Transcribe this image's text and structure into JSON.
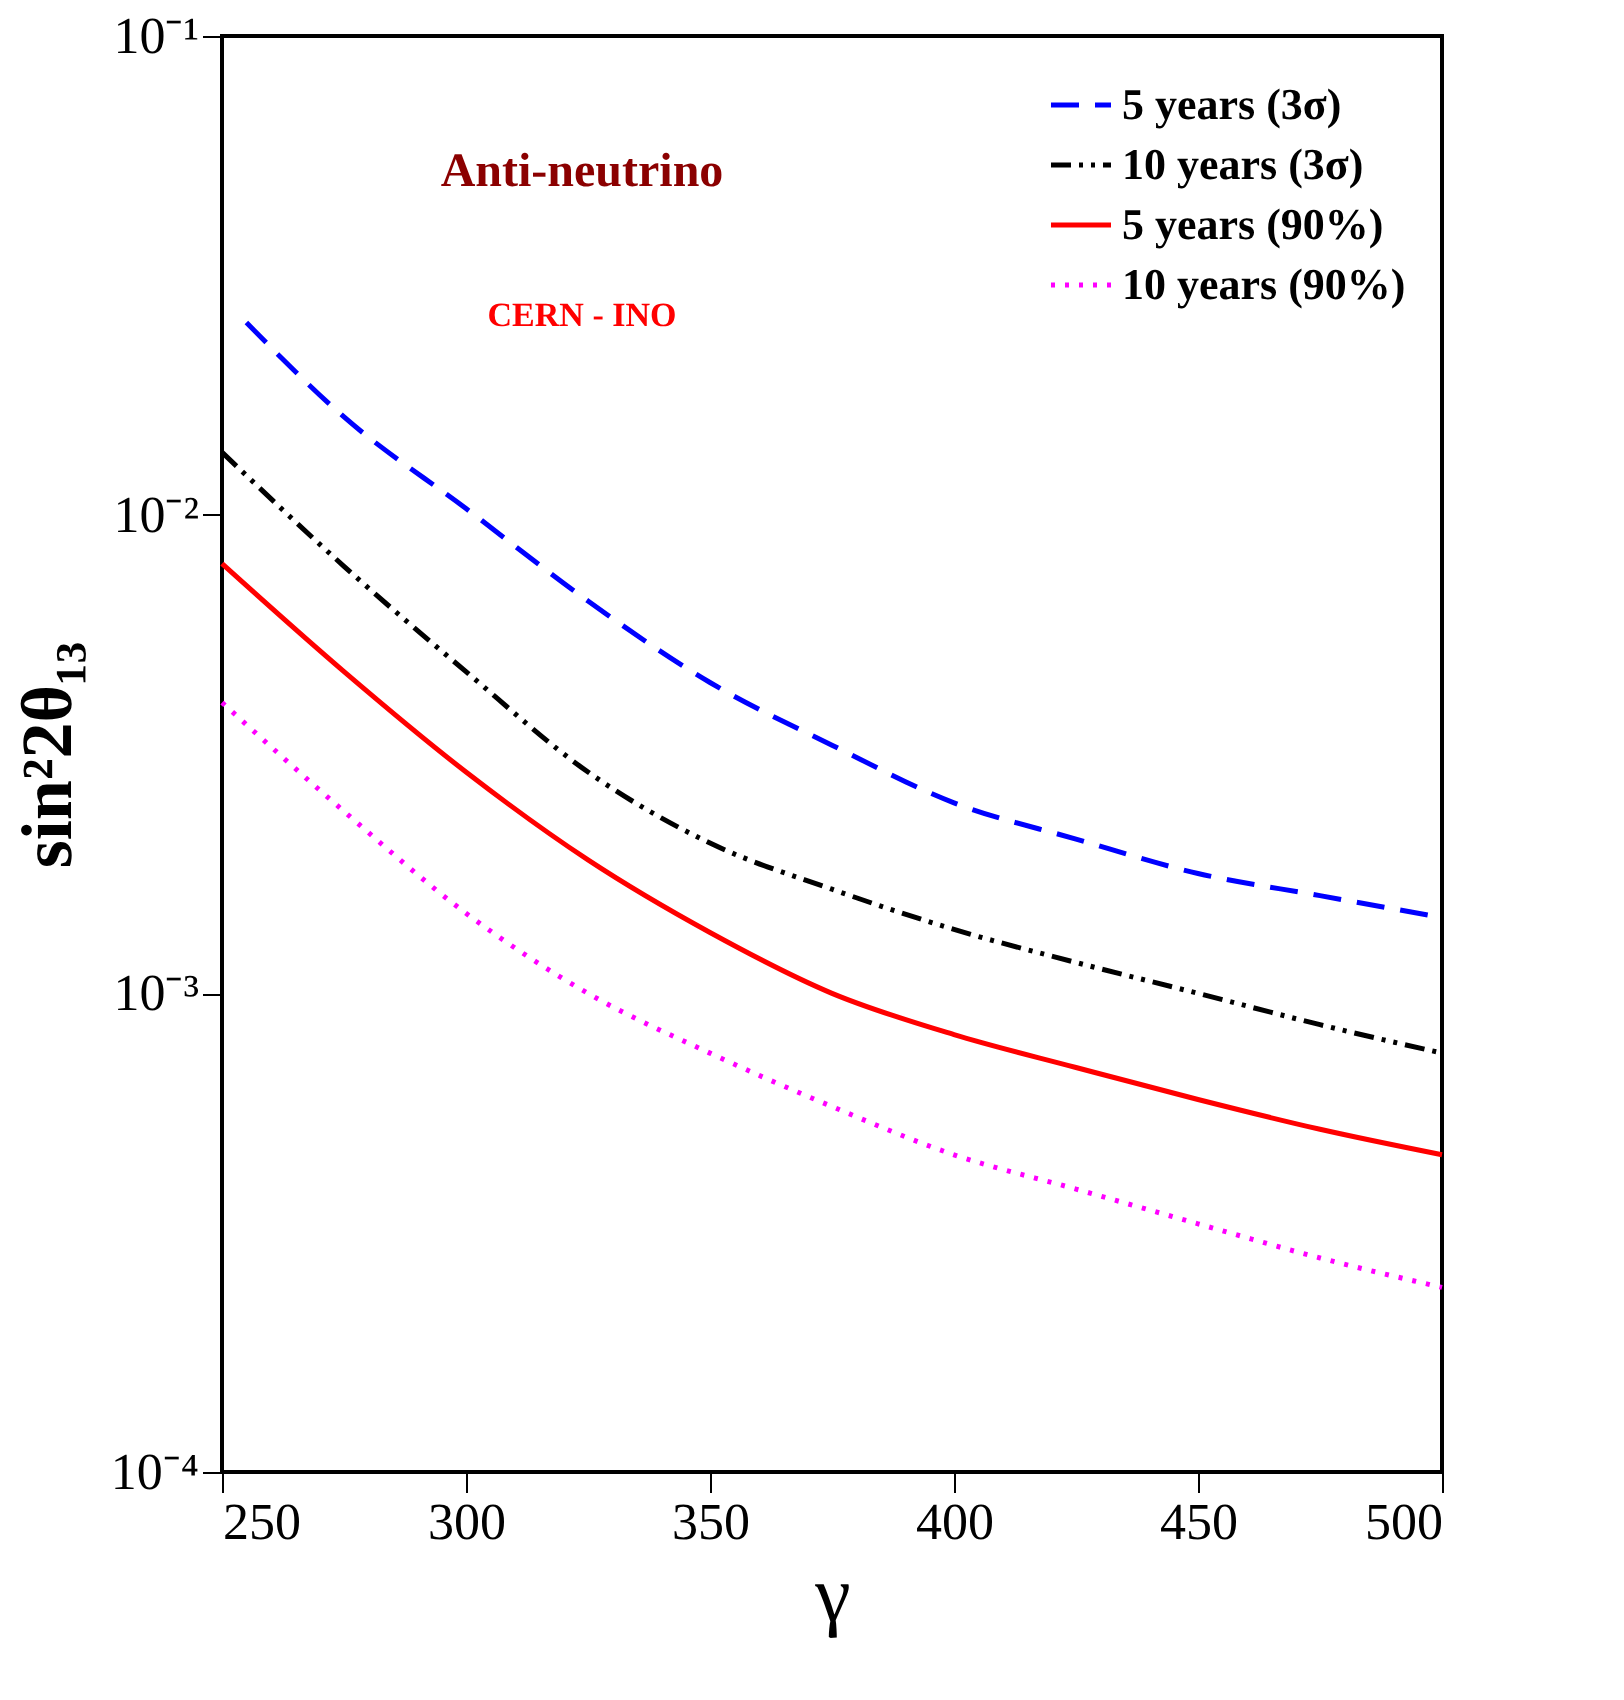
{
  "chart_data": {
    "type": "line",
    "xlabel": "γ",
    "ylabel": "sin²2θ₁₃",
    "annotations": [
      "Anti-neutrino",
      "CERN - INO"
    ],
    "xlim": [
      250,
      500
    ],
    "xticks": [
      250,
      300,
      350,
      400,
      450,
      500
    ],
    "ylim": [
      0.0001,
      0.1
    ],
    "yticks": [
      {
        "value": 0.0001,
        "label": "10⁻⁴"
      },
      {
        "value": 0.001,
        "label": "10⁻³"
      },
      {
        "value": 0.01,
        "label": "10⁻²"
      },
      {
        "value": 0.1,
        "label": "10⁻¹"
      }
    ],
    "log": "y",
    "legend": "top right",
    "grid": false,
    "series": [
      {
        "name": "5 years (3σ)",
        "color": "#0000ff",
        "line_style": "dashed",
        "x": [
          255,
          275,
          300,
          325,
          350,
          375,
          400,
          425,
          450,
          475,
          500
        ],
        "values": [
          0.0252,
          0.016,
          0.0103,
          0.0066,
          0.00446,
          0.0033,
          0.0025,
          0.0021,
          0.00178,
          0.0016,
          0.00144
        ]
      },
      {
        "name": "10 years (3σ)",
        "color": "#000000",
        "line_style": "dashdotdot",
        "x": [
          250,
          275,
          300,
          325,
          350,
          375,
          400,
          425,
          450,
          475,
          500
        ],
        "values": [
          0.0135,
          0.0078,
          0.0047,
          0.0029,
          0.00206,
          0.00165,
          0.00136,
          0.00116,
          0.001,
          0.00086,
          0.00075
        ]
      },
      {
        "name": "5 years (90%)",
        "color": "#ff0000",
        "line_style": "solid",
        "x": [
          250,
          275,
          300,
          325,
          350,
          375,
          400,
          425,
          450,
          475,
          500
        ],
        "values": [
          0.0079,
          0.0047,
          0.0029,
          0.0019,
          0.00134,
          0.001,
          0.00082,
          0.0007,
          0.0006,
          0.00052,
          0.00046
        ]
      },
      {
        "name": "10 years (90%)",
        "color": "#ff00ff",
        "line_style": "dotted",
        "x": [
          250,
          275,
          300,
          325,
          350,
          375,
          400,
          425,
          450,
          475,
          500
        ],
        "values": [
          0.00405,
          0.0024,
          0.00147,
          0.001,
          0.00075,
          0.00058,
          0.00046,
          0.00039,
          0.00033,
          0.00028,
          0.000243
        ]
      }
    ]
  }
}
